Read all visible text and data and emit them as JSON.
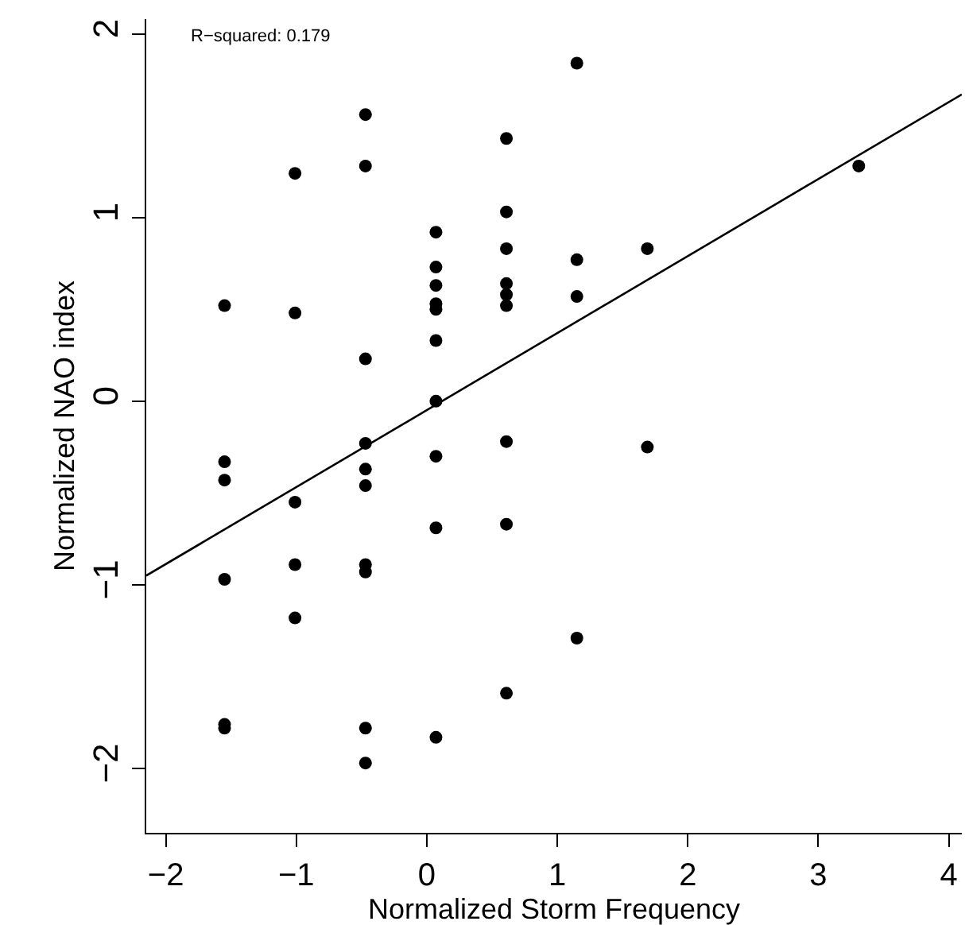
{
  "chart_data": {
    "type": "scatter",
    "xlabel": "Normalized Storm Frequency",
    "ylabel": "Normalized NAO index",
    "annotations": [
      "R−squared: 0.179"
    ],
    "xlim": [
      -2.15,
      4.1
    ],
    "ylim": [
      -2.35,
      2.08
    ],
    "xticks": [
      -2,
      -1,
      0,
      1,
      2,
      3,
      4
    ],
    "yticks": [
      -2,
      -1,
      0,
      1,
      2
    ],
    "grid": false,
    "marker": "circle",
    "series": [
      {
        "color": "#000000",
        "x": [
          -1.55,
          -1.55,
          -1.55,
          -1.55,
          -1.55,
          -1.55,
          -1.01,
          -1.01,
          -1.01,
          -1.01,
          -1.01,
          -0.47,
          -0.47,
          -0.47,
          -0.47,
          -0.47,
          -0.47,
          -0.47,
          -0.47,
          -0.47,
          -0.47,
          0.07,
          0.07,
          0.07,
          0.07,
          0.07,
          0.07,
          0.07,
          0.07,
          0.07,
          0.07,
          0.61,
          0.61,
          0.61,
          0.61,
          0.61,
          0.61,
          0.61,
          0.61,
          0.61,
          1.15,
          1.15,
          1.15,
          1.15,
          1.69,
          1.69,
          3.31
        ],
        "values": [
          0.52,
          -0.33,
          -0.43,
          -0.97,
          -1.76,
          -1.78,
          1.24,
          0.48,
          -0.55,
          -0.89,
          -1.18,
          1.56,
          1.28,
          0.23,
          -0.23,
          -0.37,
          -0.46,
          -0.89,
          -0.93,
          -1.78,
          -1.97,
          0.92,
          0.73,
          0.63,
          0.53,
          0.5,
          0.33,
          0,
          -0.3,
          -0.69,
          -1.83,
          1.43,
          1.03,
          0.83,
          0.64,
          0.58,
          0.52,
          -0.22,
          -0.67,
          -1.59,
          1.84,
          0.77,
          0.57,
          -1.29,
          0.83,
          -0.25,
          1.28
        ]
      },
      {
        "type": "line",
        "color": "#000000",
        "marker": "none",
        "line_style": "solid",
        "x": [
          -2.15,
          4.1
        ],
        "values": [
          -0.95,
          1.67
        ]
      }
    ]
  }
}
